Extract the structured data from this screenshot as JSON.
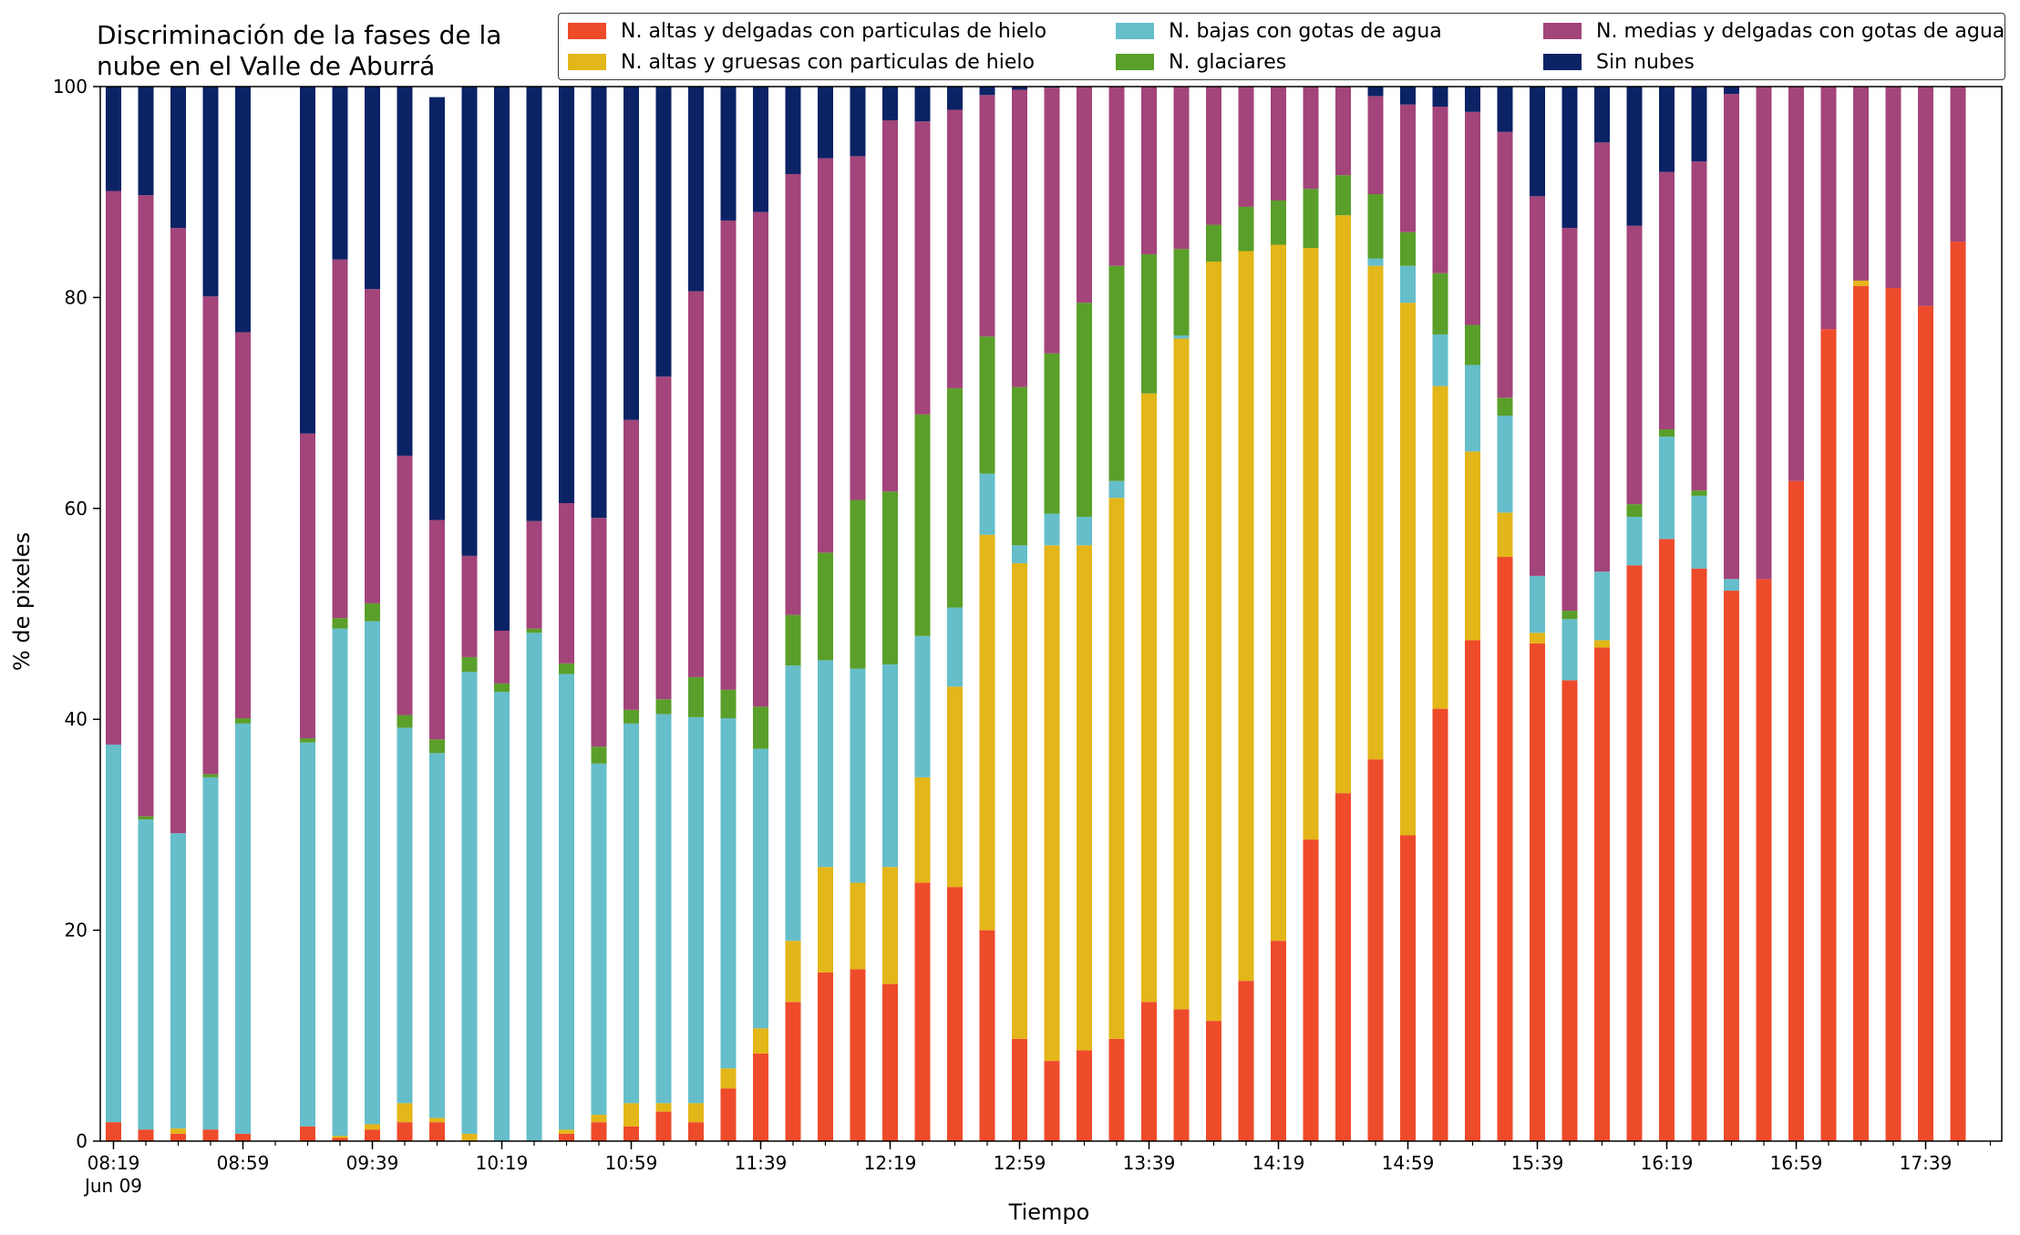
{
  "chart_data": {
    "type": "bar",
    "stacked": true,
    "title": "Discriminación de la fases de la\nnube en el Valle de Aburrá",
    "xlabel": "Tiempo",
    "ylabel": "% de pixeles",
    "ylim": [
      0,
      100
    ],
    "yticks": [
      0,
      20,
      40,
      60,
      80,
      100
    ],
    "x_date_label": "Jun 09",
    "x_tick_labels": [
      "08:19",
      "08:59",
      "09:39",
      "10:19",
      "10:59",
      "11:39",
      "12:19",
      "12:59",
      "13:39",
      "14:19",
      "14:59",
      "15:39",
      "16:19",
      "16:59",
      "17:39"
    ],
    "legend_position": "top-right",
    "categories": [
      "08:19",
      "08:29",
      "08:39",
      "08:49",
      "08:59",
      "09:09",
      "09:19",
      "09:29",
      "09:39",
      "09:49",
      "09:59",
      "10:09",
      "10:19",
      "10:29",
      "10:39",
      "10:49",
      "10:59",
      "11:09",
      "11:19",
      "11:29",
      "11:39",
      "11:49",
      "11:59",
      "12:09",
      "12:19",
      "12:29",
      "12:39",
      "12:49",
      "12:59",
      "13:09",
      "13:19",
      "13:29",
      "13:39",
      "13:49",
      "13:59",
      "14:09",
      "14:19",
      "14:29",
      "14:39",
      "14:49",
      "14:59",
      "15:09",
      "15:19",
      "15:29",
      "15:39",
      "15:49",
      "15:59",
      "16:09",
      "16:19",
      "16:29",
      "16:39",
      "16:49",
      "16:59",
      "17:09",
      "17:19",
      "17:29",
      "17:39",
      "17:49"
    ],
    "series": [
      {
        "name": "N. altas y delgadas con particulas de hielo",
        "color": "#EE4B2B",
        "values": [
          1.8,
          1.1,
          0.7,
          1.1,
          0.7,
          null,
          1.4,
          0.3,
          1.1,
          1.8,
          1.8,
          0.0,
          0.0,
          0.0,
          0.7,
          1.8,
          1.4,
          2.8,
          1.8,
          5.0,
          8.3,
          13.2,
          16.0,
          16.3,
          14.9,
          24.5,
          24.1,
          20.0,
          9.7,
          7.6,
          8.6,
          9.7,
          13.2,
          12.5,
          11.4,
          15.2,
          19.0,
          28.6,
          33.0,
          36.2,
          29.0,
          41.0,
          47.5,
          55.4,
          47.2,
          43.7,
          46.8,
          54.6,
          57.1,
          54.3,
          52.2,
          53.3,
          62.6,
          77.0,
          81.1,
          80.9,
          79.2,
          85.3
        ]
      },
      {
        "name": "N. altas y gruesas con particulas de hielo",
        "color": "#E3B619",
        "values": [
          0.0,
          0.0,
          0.5,
          0.0,
          0.0,
          null,
          0.0,
          0.2,
          0.5,
          1.8,
          0.4,
          0.7,
          0.0,
          0.0,
          0.4,
          0.7,
          2.2,
          0.8,
          1.8,
          1.9,
          2.4,
          5.8,
          10.0,
          8.2,
          11.1,
          10.0,
          19.0,
          37.5,
          45.1,
          48.9,
          47.9,
          51.3,
          57.7,
          63.6,
          72.0,
          69.2,
          66.0,
          56.1,
          54.8,
          46.8,
          50.5,
          30.6,
          17.9,
          4.2,
          1.0,
          0.0,
          0.7,
          0.0,
          0.0,
          0.0,
          0.0,
          0.0,
          0.0,
          0.0,
          0.5,
          0.0,
          0.0,
          0.0
        ]
      },
      {
        "name": "N. bajas con gotas de agua",
        "color": "#65BECA",
        "values": [
          35.8,
          29.4,
          28.0,
          33.4,
          38.9,
          null,
          36.4,
          48.1,
          47.7,
          35.6,
          34.6,
          43.8,
          42.6,
          48.2,
          43.2,
          33.3,
          36.0,
          36.9,
          36.6,
          33.2,
          26.5,
          26.1,
          19.6,
          20.3,
          19.2,
          13.4,
          7.5,
          5.8,
          1.7,
          3.0,
          2.7,
          1.6,
          0.0,
          0.3,
          0.0,
          0.0,
          0.0,
          0.0,
          0.0,
          0.7,
          3.5,
          4.9,
          8.2,
          9.2,
          5.4,
          5.8,
          6.5,
          4.6,
          9.7,
          6.9,
          1.1,
          0.0,
          0.0,
          0.0,
          0.0,
          0.0,
          0.0,
          0.0
        ]
      },
      {
        "name": "N. glaciares",
        "color": "#5A9F2A",
        "values": [
          0.0,
          0.3,
          0.0,
          0.3,
          0.5,
          null,
          0.4,
          1.0,
          1.7,
          1.2,
          1.3,
          1.4,
          0.8,
          0.4,
          1.0,
          1.6,
          1.3,
          1.4,
          3.8,
          2.7,
          4.0,
          4.8,
          10.2,
          16.0,
          16.4,
          21.0,
          20.8,
          13.0,
          15.0,
          15.2,
          20.3,
          20.4,
          13.2,
          8.2,
          3.5,
          4.2,
          4.2,
          5.6,
          3.8,
          6.1,
          3.2,
          5.8,
          3.8,
          1.7,
          0.0,
          0.8,
          0.0,
          1.2,
          0.7,
          0.5,
          0.0,
          0.0,
          0.0,
          0.0,
          0.0,
          0.0,
          0.0,
          0.0
        ]
      },
      {
        "name": "N. medias y delgadas con gotas de agua",
        "color": "#A3447A",
        "values": [
          52.5,
          58.9,
          57.4,
          45.3,
          36.6,
          null,
          28.9,
          34.0,
          29.8,
          24.6,
          20.8,
          9.6,
          5.0,
          10.2,
          15.2,
          21.7,
          27.5,
          30.6,
          36.6,
          44.5,
          46.9,
          41.8,
          37.4,
          32.6,
          35.2,
          27.8,
          26.4,
          22.9,
          28.2,
          25.2,
          20.5,
          17.0,
          16.2,
          15.6,
          13.1,
          11.6,
          11.0,
          9.8,
          8.6,
          9.3,
          12.1,
          15.8,
          20.2,
          25.2,
          36.0,
          36.3,
          40.7,
          26.4,
          24.4,
          31.2,
          46.0,
          46.7,
          37.4,
          23.0,
          18.4,
          19.1,
          20.8,
          14.7
        ]
      },
      {
        "name": "Sin nubes",
        "color": "#0B2365",
        "values": [
          9.9,
          10.3,
          13.4,
          19.9,
          23.3,
          null,
          32.9,
          16.4,
          19.2,
          35.0,
          40.1,
          44.5,
          51.6,
          41.2,
          39.5,
          40.9,
          31.6,
          27.5,
          19.4,
          12.7,
          11.9,
          8.3,
          6.8,
          6.6,
          3.2,
          3.3,
          2.2,
          0.8,
          0.3,
          0.1,
          0.0,
          0.0,
          0.0,
          0.0,
          0.0,
          0.0,
          0.0,
          0.0,
          0.0,
          1.2,
          1.9,
          1.9,
          2.4,
          4.4,
          10.4,
          13.4,
          12.3,
          13.2,
          8.1,
          7.1,
          0.7,
          0.0,
          0.0,
          0.0,
          0.0,
          0.0,
          0.0,
          0.0
        ]
      }
    ]
  }
}
